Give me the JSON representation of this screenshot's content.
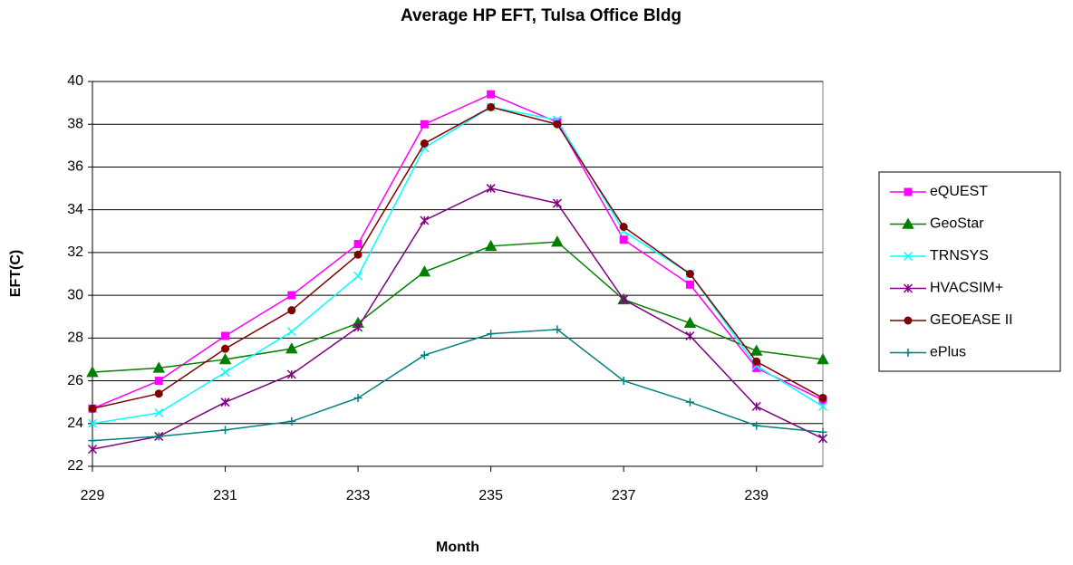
{
  "chart_data": {
    "type": "line",
    "title": "Average HP EFT, Tulsa Office Bldg",
    "x_label": "Month",
    "y_label": "EFT(C)",
    "x": [
      229,
      230,
      231,
      232,
      233,
      234,
      235,
      236,
      237,
      238,
      239,
      240
    ],
    "xlim": [
      229,
      240
    ],
    "xticks": [
      229,
      231,
      233,
      235,
      237,
      239
    ],
    "ylim": [
      22,
      40
    ],
    "yticks": [
      22,
      24,
      26,
      28,
      30,
      32,
      34,
      36,
      38,
      40
    ],
    "grid": true,
    "legend": "right",
    "series": [
      {
        "name": "eQUEST",
        "color": "#ff00ff",
        "marker": "square",
        "values": [
          24.7,
          26.0,
          28.1,
          30.0,
          32.4,
          38.0,
          39.4,
          38.1,
          32.6,
          30.5,
          26.6,
          25.1
        ]
      },
      {
        "name": "GeoStar",
        "color": "#008000",
        "marker": "triangle",
        "values": [
          26.4,
          26.6,
          27.0,
          27.5,
          28.7,
          31.1,
          32.3,
          32.5,
          29.8,
          28.7,
          27.4,
          27.0
        ]
      },
      {
        "name": "TRNSYS",
        "color": "#00ffff",
        "marker": "x",
        "values": [
          24.0,
          24.5,
          26.4,
          28.3,
          30.9,
          36.9,
          38.8,
          38.2,
          33.0,
          31.0,
          26.7,
          24.8
        ]
      },
      {
        "name": "HVACSIM+",
        "color": "#800080",
        "marker": "asterisk",
        "values": [
          22.8,
          23.4,
          25.0,
          26.3,
          28.5,
          33.5,
          35.0,
          34.3,
          29.8,
          28.1,
          24.8,
          23.3
        ]
      },
      {
        "name": "GEOEASE II",
        "color": "#800000",
        "marker": "circle",
        "values": [
          24.7,
          25.4,
          27.5,
          29.3,
          31.9,
          37.1,
          38.8,
          38.0,
          33.2,
          31.0,
          26.9,
          25.2
        ]
      },
      {
        "name": "ePlus",
        "color": "#008080",
        "marker": "plus",
        "values": [
          23.2,
          23.4,
          23.7,
          24.1,
          25.2,
          27.2,
          28.2,
          28.4,
          26.0,
          25.0,
          23.9,
          23.6
        ]
      }
    ]
  }
}
